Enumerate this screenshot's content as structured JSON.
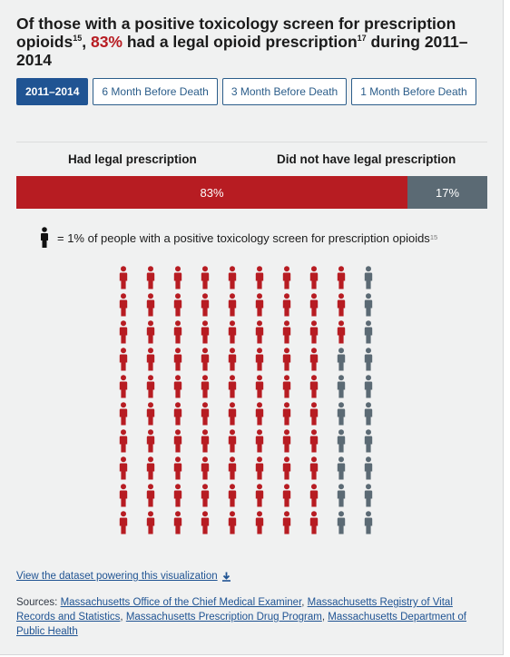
{
  "headline": {
    "part1": "Of those with a positive toxicology screen for ",
    "bold": "prescription opioids",
    "sup1": "15",
    "comma": ", ",
    "pct": "83%",
    "part2": " had a legal opioid prescription",
    "sup2": "17",
    "part3": " during 2011–2014"
  },
  "tabs": [
    {
      "label": "2011–2014",
      "active": true
    },
    {
      "label": "6 Month Before Death",
      "active": false
    },
    {
      "label": "3 Month Before Death",
      "active": false
    },
    {
      "label": "1 Month Before Death",
      "active": false
    }
  ],
  "legend": {
    "text": "= 1% of people with a positive toxicology screen for prescription opioids",
    "sup": "15"
  },
  "chart_data": {
    "type": "bar",
    "orientation": "stacked-horizontal-100",
    "categories": [
      "Had legal prescription",
      "Did not have legal prescription"
    ],
    "values": [
      83,
      17
    ],
    "value_labels": [
      "83%",
      "17%"
    ],
    "colors": [
      "#b71c22",
      "#5b6a74"
    ],
    "pictogram": {
      "unit_percent": 1,
      "rows": 10,
      "cols": 10,
      "filled": 83,
      "fill_color": "#b71c22",
      "empty_color": "#5b6a74",
      "order": "column-major"
    }
  },
  "download": {
    "label": "View the dataset powering this visualization"
  },
  "sources": {
    "prefix": "Sources: ",
    "links": [
      "Massachusetts Office of the Chief Medical Examiner",
      "Massachusetts Registry of Vital Records and Statistics",
      "Massachusetts Prescription Drug Program",
      "Massachusetts Department of Public Health"
    ],
    "sep": ", "
  }
}
